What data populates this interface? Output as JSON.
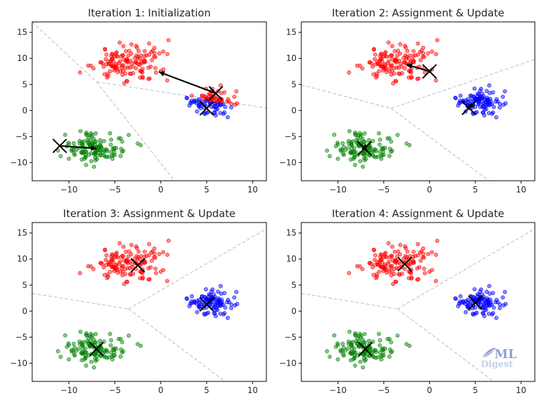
{
  "chart_data": {
    "type": "scatter",
    "xlim": [
      -14,
      11.5
    ],
    "ylim": [
      -13.5,
      17
    ],
    "xticks": [
      -10,
      -5,
      0,
      5,
      10
    ],
    "yticks": [
      -10,
      -5,
      0,
      5,
      10,
      15
    ],
    "grid": false,
    "colors": {
      "red": "#ff0000",
      "blue": "#0000ff",
      "green": "#008000",
      "centroid": "#000000",
      "boundary": "#bbbbbb"
    },
    "clusters": [
      {
        "color": "#ff0000",
        "center": [
          -3.5,
          9.3
        ],
        "spread": [
          3.0,
          2.7
        ],
        "count": 140,
        "seed": 11
      },
      {
        "color": "#0000ff",
        "center": [
          5.3,
          1.6
        ],
        "spread": [
          2.2,
          1.8
        ],
        "count": 110,
        "seed": 23
      },
      {
        "color": "#008000",
        "center": [
          -7.0,
          -7.3
        ],
        "spread": [
          2.5,
          2.1
        ],
        "count": 130,
        "seed": 37
      }
    ],
    "panels": [
      {
        "title": "Iteration 1: Initialization",
        "centroids": [
          [
            6.0,
            3.3
          ],
          [
            5.0,
            0.4
          ],
          [
            -11.0,
            -6.8
          ]
        ],
        "arrows": [
          {
            "from": [
              6.0,
              3.3
            ],
            "to": [
              -0.2,
              7.4
            ]
          },
          {
            "from": [
              -11.0,
              -6.8
            ],
            "to": [
              -7.0,
              -7.3
            ]
          }
        ],
        "boundaries": [
          [
            [
              -14.0,
              17.0
            ],
            [
              -7.0,
              5.5
            ]
          ],
          [
            [
              -7.0,
              5.5
            ],
            [
              11.5,
              0.5
            ]
          ],
          [
            [
              -7.0,
              5.5
            ],
            [
              1.5,
              -13.5
            ]
          ]
        ],
        "point_assignment": "initial"
      },
      {
        "title": "Iteration 2: Assignment & Update",
        "centroids": [
          [
            0.0,
            7.5
          ],
          [
            4.3,
            0.5
          ],
          [
            -7.1,
            -7.3
          ]
        ],
        "arrows": [
          {
            "from": [
              0.0,
              7.5
            ],
            "to": [
              -2.5,
              8.8
            ]
          },
          {
            "from": [
              4.3,
              0.5
            ],
            "to": [
              4.9,
              1.5
            ]
          },
          {
            "from": [
              -7.1,
              -7.3
            ],
            "to": [
              -7.0,
              -6.5
            ]
          }
        ],
        "boundaries": [
          [
            [
              -14.0,
              4.9
            ],
            [
              -4.2,
              0.4
            ]
          ],
          [
            [
              -4.2,
              0.4
            ],
            [
              11.5,
              9.8
            ]
          ],
          [
            [
              -4.2,
              0.4
            ],
            [
              6.5,
              -13.5
            ]
          ]
        ],
        "point_assignment": "true"
      },
      {
        "title": "Iteration 3: Assignment & Update",
        "centroids": [
          [
            -2.5,
            8.8
          ],
          [
            5.0,
            1.3
          ],
          [
            -7.0,
            -7.3
          ]
        ],
        "arrows": [],
        "boundaries": [
          [
            [
              -14.0,
              3.4
            ],
            [
              -3.5,
              0.4
            ]
          ],
          [
            [
              -3.5,
              0.4
            ],
            [
              11.5,
              15.8
            ]
          ],
          [
            [
              -3.5,
              0.4
            ],
            [
              7.0,
              -13.5
            ]
          ]
        ],
        "point_assignment": "true"
      },
      {
        "title": "Iteration 4: Assignment & Update",
        "centroids": [
          [
            -2.7,
            9.0
          ],
          [
            5.0,
            1.6
          ],
          [
            -7.0,
            -7.3
          ]
        ],
        "arrows": [],
        "boundaries": [
          [
            [
              -14.0,
              3.4
            ],
            [
              -3.5,
              0.4
            ]
          ],
          [
            [
              -3.5,
              0.4
            ],
            [
              11.5,
              15.8
            ]
          ],
          [
            [
              -3.5,
              0.4
            ],
            [
              7.0,
              -13.5
            ]
          ]
        ],
        "point_assignment": "true"
      }
    ]
  },
  "watermark": {
    "line1": "ML",
    "line2": "Digest"
  }
}
